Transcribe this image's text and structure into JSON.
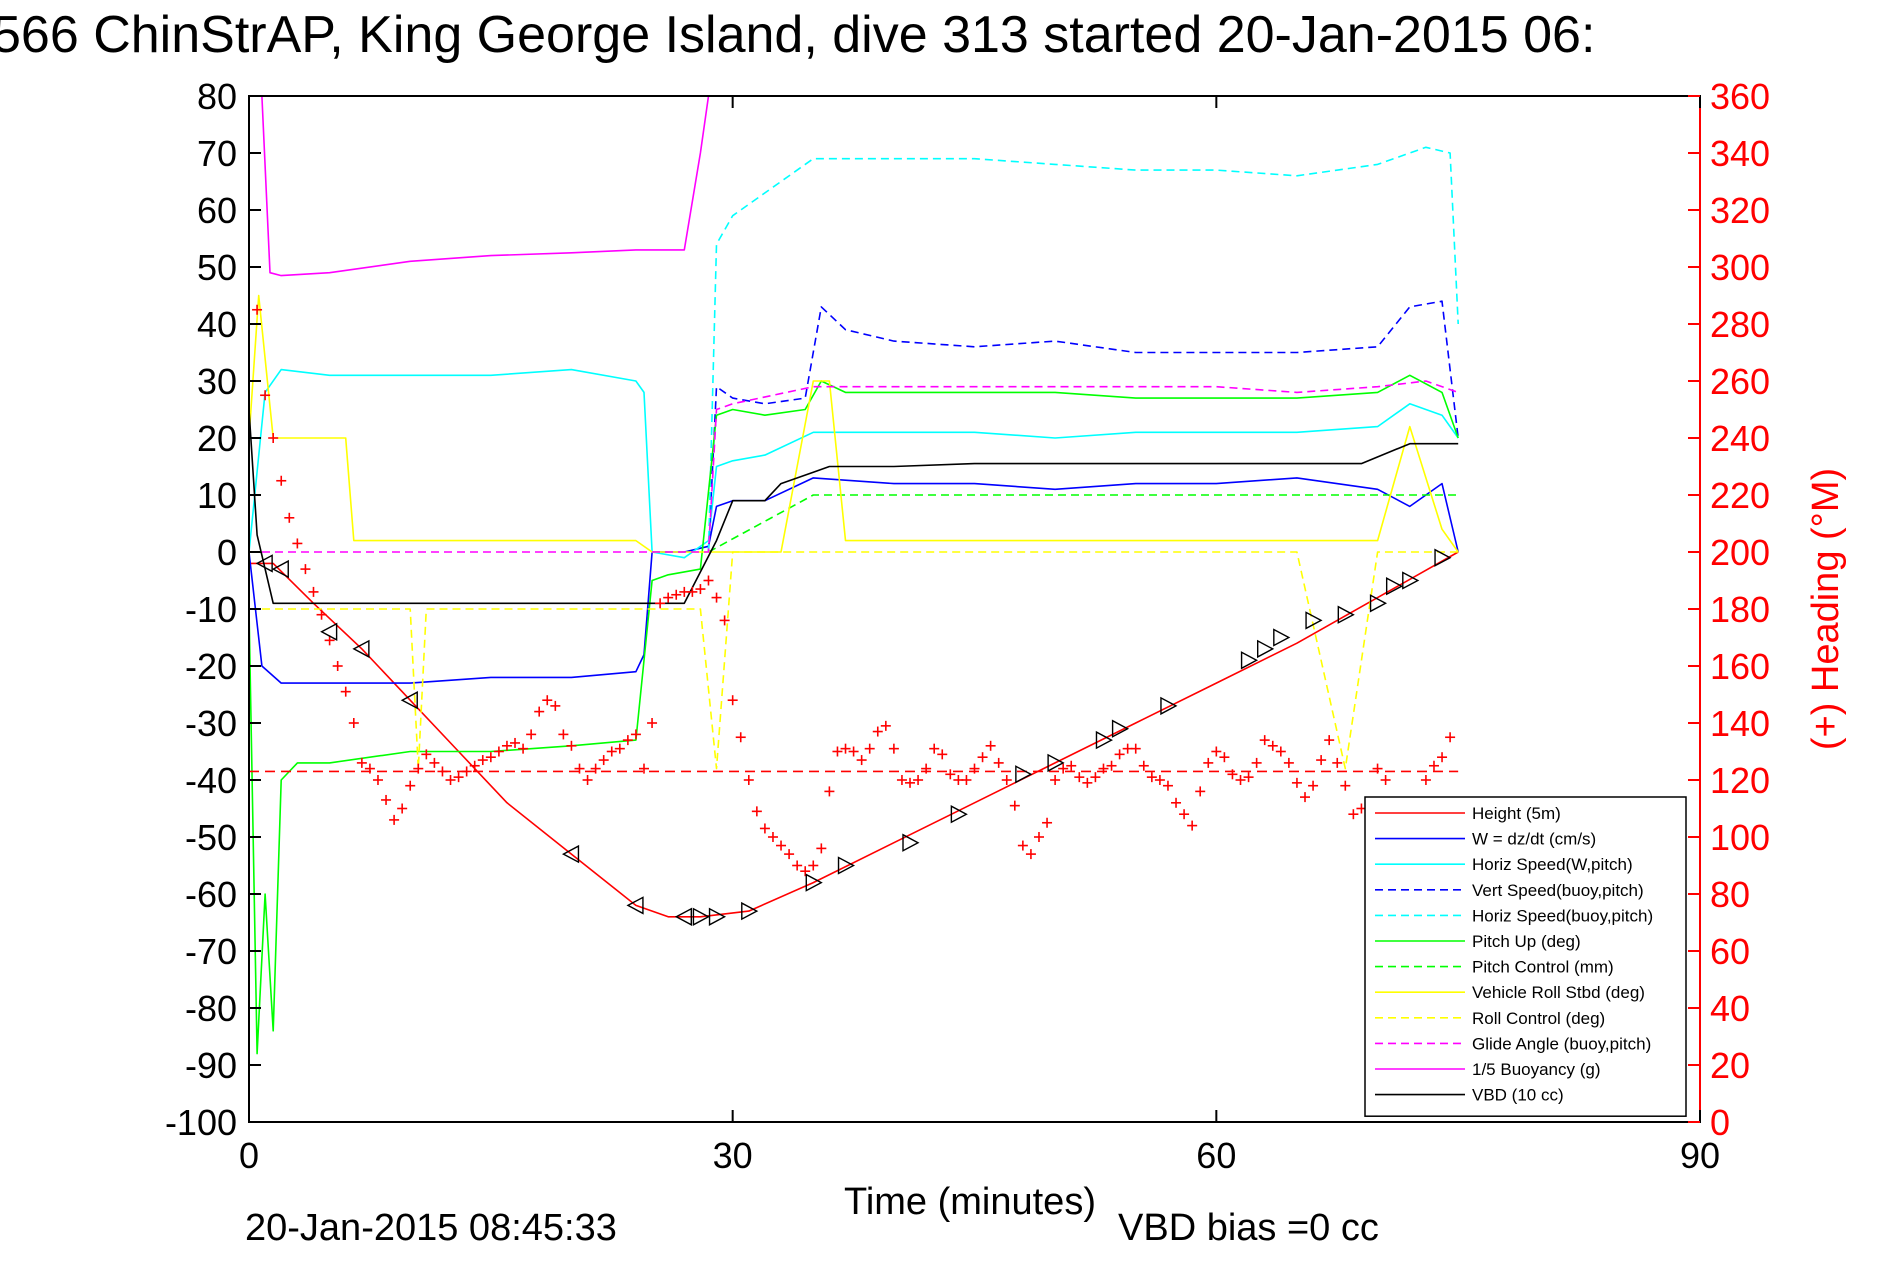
{
  "chart_data": {
    "type": "line",
    "title": "566 ChinStrAP, King George Island, dive 313 started 20-Jan-2015 06:",
    "xlabel": "Time (minutes)",
    "ylabel_right": "(+) Heading (°M)",
    "footer_left": "20-Jan-2015 08:45:33",
    "footer_right": "VBD bias =0 cc",
    "xlim": [
      0,
      90
    ],
    "ylim": [
      -100,
      80
    ],
    "ylim_right": [
      0,
      360
    ],
    "x_ticks": [
      "0",
      "30",
      "60",
      "90"
    ],
    "y_ticks": [
      "80",
      "70",
      "60",
      "50",
      "40",
      "30",
      "20",
      "10",
      "0",
      "-10",
      "-20",
      "-30",
      "-40",
      "-50",
      "-60",
      "-70",
      "-80",
      "-90",
      "-100"
    ],
    "y_ticks_right": [
      "360",
      "340",
      "320",
      "300",
      "280",
      "260",
      "240",
      "220",
      "200",
      "180",
      "160",
      "140",
      "120",
      "100",
      "80",
      "60",
      "40",
      "20",
      "0"
    ],
    "grid": false,
    "legend_position": "bottom-right",
    "colors": {
      "axis": "#000000",
      "right_axis": "#ff0000",
      "red": "#ff0000",
      "blue": "#0000ff",
      "cyan": "#00ffff",
      "green": "#00ff00",
      "yellow": "#ffff00",
      "magenta": "#ff00ff",
      "black": "#000000"
    },
    "legend": [
      {
        "label": "Height (5m)",
        "color": "#ff0000",
        "dash": false
      },
      {
        "label": "W = dz/dt (cm/s)",
        "color": "#0000ff",
        "dash": false
      },
      {
        "label": "Horiz Speed(W,pitch)",
        "color": "#00ffff",
        "dash": false
      },
      {
        "label": "Vert Speed(buoy,pitch)",
        "color": "#0000ff",
        "dash": true
      },
      {
        "label": "Horiz Speed(buoy,pitch)",
        "color": "#00ffff",
        "dash": true
      },
      {
        "label": "Pitch Up (deg)",
        "color": "#00ff00",
        "dash": false
      },
      {
        "label": "Pitch Control (mm)",
        "color": "#00ff00",
        "dash": true
      },
      {
        "label": "Vehicle Roll Stbd (deg)",
        "color": "#ffff00",
        "dash": false
      },
      {
        "label": "Roll Control (deg)",
        "color": "#ffff00",
        "dash": true
      },
      {
        "label": "Glide Angle (buoy,pitch)",
        "color": "#ff00ff",
        "dash": true
      },
      {
        "label": "1/5 Buoyancy (g)",
        "color": "#ff00ff",
        "dash": false
      },
      {
        "label": "VBD (10 cc)",
        "color": "#000000",
        "dash": false
      }
    ],
    "series": [
      {
        "name": "Height (5m)",
        "color": "#ff0000",
        "dash": false,
        "x": [
          0,
          1.5,
          4,
          7,
          10,
          13,
          16,
          20,
          24,
          26,
          28,
          31,
          35,
          40,
          45,
          50,
          55,
          60,
          65,
          70,
          75
        ],
        "y": [
          -2,
          -2,
          -9,
          -17,
          -26,
          -35,
          -44,
          -53,
          -62,
          -64,
          -64,
          -63,
          -58,
          -51,
          -44,
          -37,
          -30,
          -23,
          -16,
          -8,
          0
        ]
      },
      {
        "name": "W = dz/dt (cm/s)",
        "color": "#0000ff",
        "dash": false,
        "x": [
          0,
          0.8,
          2,
          5,
          10,
          15,
          20,
          24,
          24.5,
          25,
          27,
          28.5,
          29,
          30,
          32,
          35,
          40,
          45,
          50,
          55,
          60,
          65,
          70,
          72,
          74,
          75
        ],
        "y": [
          0,
          -20,
          -23,
          -23,
          -23,
          -22,
          -22,
          -21,
          -18,
          0,
          0,
          1,
          8,
          9,
          9,
          13,
          12,
          12,
          11,
          12,
          12,
          13,
          11,
          8,
          12,
          0
        ]
      },
      {
        "name": "Horiz Speed(W,pitch)",
        "color": "#00ffff",
        "dash": false,
        "x": [
          0,
          1,
          2,
          5,
          10,
          15,
          20,
          24,
          24.5,
          25,
          27,
          28.5,
          29,
          30,
          32,
          35,
          40,
          45,
          50,
          55,
          60,
          65,
          70,
          72,
          74,
          75
        ],
        "y": [
          0,
          28,
          32,
          31,
          31,
          31,
          32,
          30,
          28,
          0,
          -1,
          2,
          15,
          16,
          17,
          21,
          21,
          21,
          20,
          21,
          21,
          21,
          22,
          26,
          24,
          20
        ]
      },
      {
        "name": "Vert Speed(buoy,pitch)",
        "color": "#0000ff",
        "dash": true,
        "x": [
          28.5,
          29,
          30,
          32,
          34.5,
          35.5,
          37,
          40,
          45,
          50,
          55,
          60,
          65,
          70,
          72,
          74,
          75
        ],
        "y": [
          0,
          29,
          27,
          26,
          27,
          43,
          39,
          37,
          36,
          37,
          35,
          35,
          35,
          36,
          43,
          44,
          20
        ]
      },
      {
        "name": "Horiz Speed(buoy,pitch)",
        "color": "#00ffff",
        "dash": true,
        "x": [
          28.5,
          29,
          30,
          32,
          35,
          40,
          45,
          50,
          55,
          60,
          65,
          70,
          73,
          74.5,
          75
        ],
        "y": [
          0,
          54,
          59,
          63,
          69,
          69,
          69,
          68,
          67,
          67,
          66,
          68,
          71,
          70,
          40
        ]
      },
      {
        "name": "Pitch Up (deg)",
        "color": "#00ff00",
        "dash": false,
        "x": [
          0,
          0.5,
          1,
          1.5,
          2,
          3,
          5,
          10,
          15,
          20,
          24,
          25,
          26,
          28,
          29,
          30,
          32,
          34.5,
          35.5,
          37,
          40,
          45,
          50,
          55,
          60,
          65,
          70,
          72,
          74,
          75
        ],
        "y": [
          -10,
          -88,
          -60,
          -84,
          -40,
          -37,
          -37,
          -35,
          -35,
          -34,
          -33,
          -5,
          -4,
          -3,
          24,
          25,
          24,
          25,
          30,
          28,
          28,
          28,
          28,
          27,
          27,
          27,
          28,
          31,
          28,
          20
        ]
      },
      {
        "name": "Pitch Control (mm)",
        "color": "#00ff00",
        "dash": true,
        "x": [
          28.5,
          35,
          40,
          45,
          50,
          55,
          60,
          65,
          70,
          75
        ],
        "y": [
          0,
          10,
          10,
          10,
          10,
          10,
          10,
          10,
          10,
          10
        ]
      },
      {
        "name": "Vehicle Roll Stbd (deg)",
        "color": "#ffff00",
        "dash": false,
        "x": [
          0,
          0.6,
          1.5,
          2,
          3,
          4,
          5,
          6,
          6.5,
          7,
          10,
          15,
          20,
          22,
          24,
          25,
          27,
          28,
          29,
          30,
          33,
          35,
          36,
          37,
          40,
          45,
          50,
          55,
          60,
          65,
          70,
          72,
          74,
          75
        ],
        "y": [
          20,
          45,
          20,
          20,
          20,
          20,
          20,
          20,
          2,
          2,
          2,
          2,
          2,
          2,
          2,
          0,
          0,
          0,
          0,
          0,
          0,
          30,
          30,
          2,
          2,
          2,
          2,
          2,
          2,
          2,
          2,
          22,
          4,
          0
        ]
      },
      {
        "name": "Roll Control (deg)",
        "color": "#ffff00",
        "dash": true,
        "x": [
          0,
          1.5,
          5,
          10,
          10.5,
          11,
          15,
          20,
          25,
          28,
          29,
          30,
          35,
          40,
          45,
          50,
          55,
          60,
          65,
          68,
          70,
          73,
          75
        ],
        "y": [
          -10,
          -10,
          -10,
          -10,
          -38,
          -10,
          -10,
          -10,
          -10,
          -10,
          -38,
          0,
          0,
          0,
          0,
          0,
          0,
          0,
          0,
          -38,
          0,
          0,
          0
        ]
      },
      {
        "name": "Glide Angle (buoy,pitch)",
        "color": "#ff00ff",
        "dash": true,
        "x": [
          0,
          10,
          20,
          28.5,
          29,
          30,
          35,
          40,
          45,
          50,
          55,
          60,
          65,
          70,
          73,
          75
        ],
        "y": [
          0,
          0,
          0,
          0,
          25,
          26,
          29,
          29,
          29,
          29,
          29,
          29,
          28,
          29,
          30,
          28
        ]
      },
      {
        "name": "1/5 Buoyancy (g)",
        "color": "#ff00ff",
        "dash": false,
        "x": [
          0.8,
          1.3,
          2,
          5,
          10,
          15,
          20,
          24,
          27,
          28,
          28.5
        ],
        "y": [
          80,
          49,
          48.5,
          49,
          51,
          52,
          52.5,
          53,
          53,
          70,
          80
        ]
      },
      {
        "name": "VBD (10 cc)",
        "color": "#000000",
        "dash": false,
        "x": [
          0,
          0.5,
          1.5,
          10,
          20,
          27,
          29,
          30,
          32,
          33,
          35,
          36,
          40,
          45,
          50,
          55,
          60,
          65,
          69,
          72,
          75
        ],
        "y": [
          25,
          3,
          -9,
          -9,
          -9,
          -9,
          2,
          9,
          9,
          12,
          14,
          15,
          15,
          15.5,
          15.5,
          15.5,
          15.5,
          15.5,
          15.5,
          19,
          19
        ]
      }
    ],
    "heading": {
      "name": "Heading",
      "axis": "right",
      "color": "#ff0000",
      "marker": "+",
      "x": [
        0,
        0.5,
        1,
        1.5,
        2,
        2.5,
        3,
        3.5,
        4,
        4.5,
        5,
        5.5,
        6,
        6.5,
        7,
        7.5,
        8,
        8.5,
        9,
        9.5,
        10,
        10.5,
        11,
        11.5,
        12,
        12.5,
        13,
        13.5,
        14,
        14.5,
        15,
        15.5,
        16,
        16.5,
        17,
        17.5,
        18,
        18.5,
        19,
        19.5,
        20,
        20.5,
        21,
        21.5,
        22,
        22.5,
        23,
        23.5,
        24,
        24.5,
        25,
        25.5,
        26,
        26.5,
        27,
        27.5,
        28,
        28.5,
        29,
        29.5,
        30,
        30.5,
        31,
        31.5,
        32,
        32.5,
        33,
        33.5,
        34,
        34.5,
        35,
        35.5,
        36,
        36.5,
        37,
        37.5,
        38,
        38.5,
        39,
        39.5,
        40,
        40.5,
        41,
        41.5,
        42,
        42.5,
        43,
        43.5,
        44,
        44.5,
        45,
        45.5,
        46,
        46.5,
        47,
        47.5,
        48,
        48.5,
        49,
        49.5,
        50,
        50.5,
        51,
        51.5,
        52,
        52.5,
        53,
        53.5,
        54,
        54.5,
        55,
        55.5,
        56,
        56.5,
        57,
        57.5,
        58,
        58.5,
        59,
        59.5,
        60,
        60.5,
        61,
        61.5,
        62,
        62.5,
        63,
        63.5,
        64,
        64.5,
        65,
        65.5,
        66,
        66.5,
        67,
        67.5,
        68,
        68.5,
        69,
        69.5,
        70,
        70.5,
        71,
        71.5,
        72,
        72.5,
        73,
        73.5,
        74,
        74.5
      ],
      "y": [
        260,
        285,
        255,
        240,
        225,
        212,
        203,
        194,
        186,
        178,
        169,
        160,
        151,
        140,
        126,
        124,
        120,
        113,
        106,
        110,
        118,
        124,
        129,
        126,
        123,
        120,
        121,
        123,
        125,
        127,
        128,
        130,
        132,
        133,
        131,
        136,
        144,
        148,
        146,
        136,
        132,
        124,
        120,
        124,
        127,
        130,
        131,
        134,
        136,
        124,
        140,
        182,
        184,
        185,
        186,
        186,
        187,
        190,
        184,
        176,
        148,
        135,
        120,
        109,
        103,
        100,
        97,
        94,
        90,
        88,
        90,
        96,
        116,
        130,
        131,
        130,
        127,
        131,
        137,
        139,
        131,
        120,
        119,
        120,
        124,
        131,
        129,
        122,
        120,
        120,
        124,
        128,
        132,
        126,
        120,
        111,
        97,
        94,
        100,
        105,
        120,
        124,
        125,
        121,
        119,
        121,
        124,
        125,
        129,
        131,
        131,
        125,
        121,
        120,
        118,
        112,
        108,
        104,
        116,
        126,
        130,
        128,
        122,
        120,
        121,
        126,
        134,
        132,
        130,
        126,
        119,
        114,
        118,
        127,
        134,
        126,
        118,
        108,
        110,
        112,
        124,
        120,
        96,
        100,
        105,
        112,
        120,
        125,
        128,
        135
      ]
    },
    "heading_ref": {
      "name": "Heading ref",
      "axis": "right",
      "color": "#ff0000",
      "dash": true,
      "value": 123,
      "x": [
        0,
        75
      ]
    },
    "markers": {
      "color": "#000000",
      "x": [
        1,
        2,
        5,
        7,
        10,
        20,
        24,
        27,
        28,
        29,
        31,
        35,
        37,
        41,
        44,
        48,
        50,
        53,
        54,
        57,
        62,
        63,
        64,
        66,
        68,
        70,
        71,
        72,
        74
      ],
      "y": [
        -2,
        -3,
        -14,
        -17,
        -26,
        -53,
        -62,
        -64,
        -64,
        -64,
        -63,
        -58,
        -55,
        -51,
        -46,
        -39,
        -37,
        -33,
        -31,
        -27,
        -19,
        -17,
        -15,
        -12,
        -11,
        -9,
        -6,
        -5,
        -1
      ]
    }
  }
}
